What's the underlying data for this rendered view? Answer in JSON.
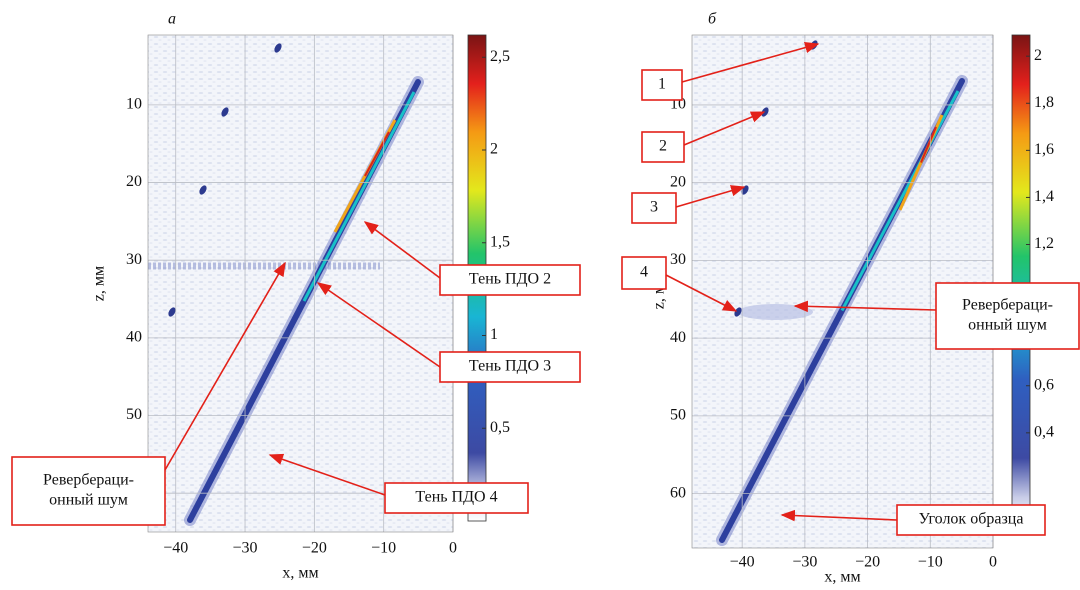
{
  "chart_data": [
    {
      "type": "image",
      "panel_label": "а",
      "xlabel": "x, мм",
      "ylabel": "z, мм",
      "xlim": [
        -44,
        0
      ],
      "ylim": [
        1,
        65
      ],
      "y_inverted": true,
      "grid": true,
      "xticks": [
        {
          "value": -40,
          "label": "−40"
        },
        {
          "value": -30,
          "label": "−30"
        },
        {
          "value": -20,
          "label": "−20"
        },
        {
          "value": -10,
          "label": "−10"
        },
        0
      ],
      "yticks": [
        10,
        20,
        30,
        40,
        50,
        60
      ],
      "colorbar": {
        "lim": [
          0,
          2.62
        ],
        "ticks": [
          {
            "value": 0.5,
            "label": "0,5"
          },
          1,
          {
            "value": 1.5,
            "label": "1,5"
          },
          2,
          {
            "value": 2.5,
            "label": "2,5"
          }
        ]
      },
      "annotations": [
        {
          "lines": [
            "Тень ПДО 2"
          ]
        },
        {
          "lines": [
            "Тень ПДО 3"
          ]
        },
        {
          "lines": [
            "Тень ПДО 4"
          ]
        },
        {
          "lines": [
            "Ревербераци-",
            "онный шум"
          ]
        }
      ]
    },
    {
      "type": "image",
      "panel_label": "б",
      "xlabel": "x, мм",
      "ylabel": "z, мм",
      "xlim": [
        -48,
        0
      ],
      "ylim": [
        1,
        67
      ],
      "y_inverted": true,
      "grid": true,
      "xticks": [
        {
          "value": -40,
          "label": "−40"
        },
        {
          "value": -30,
          "label": "−30"
        },
        {
          "value": -20,
          "label": "−20"
        },
        {
          "value": -10,
          "label": "−10"
        },
        0
      ],
      "yticks": [
        10,
        20,
        30,
        40,
        50,
        60
      ],
      "colorbar": {
        "lim": [
          0,
          2.09
        ],
        "ticks": [
          {
            "value": 0.4,
            "label": "0,4"
          },
          {
            "value": 0.6,
            "label": "0,6"
          },
          {
            "value": 1.2,
            "label": "1,2"
          },
          {
            "value": 1.4,
            "label": "1,4"
          },
          {
            "value": 1.6,
            "label": "1,6"
          },
          {
            "value": 1.8,
            "label": "1,8"
          },
          2
        ]
      },
      "annotations": [
        {
          "lines": [
            "1"
          ]
        },
        {
          "lines": [
            "2"
          ]
        },
        {
          "lines": [
            "3"
          ]
        },
        {
          "lines": [
            "4"
          ]
        },
        {
          "lines": [
            "Ревербераци-",
            "онный шум"
          ]
        },
        {
          "lines": [
            "Уголок образца"
          ]
        }
      ]
    }
  ]
}
